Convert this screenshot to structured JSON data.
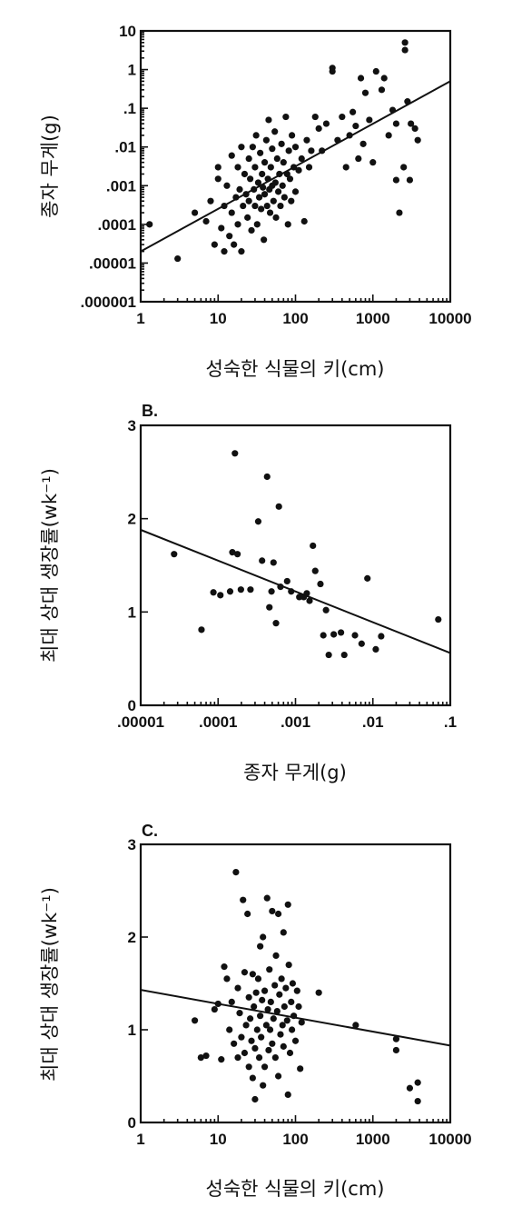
{
  "chart_data": [
    {
      "panel": "",
      "type": "scatter",
      "xlabel": "성숙한 식물의 키(cm)",
      "ylabel": "종자 무게(g)",
      "xscale": "log",
      "yscale": "log",
      "xlim": [
        1,
        10000
      ],
      "ylim": [
        1e-06,
        10
      ],
      "xticks": [
        1,
        10,
        100,
        1000,
        10000
      ],
      "xticklabels": [
        "1",
        "10",
        "100",
        "1000",
        "10000"
      ],
      "yticks": [
        1e-06,
        1e-05,
        0.0001,
        0.001,
        0.01,
        0.1,
        1,
        10
      ],
      "yticklabels": [
        ".000001",
        ".00001",
        ".0001",
        ".001",
        ".01",
        ".1",
        "1",
        "10"
      ],
      "grid": false,
      "trend_line": {
        "x": [
          1,
          10000
        ],
        "y": [
          2e-05,
          0.5
        ]
      },
      "points": [
        [
          1.3,
          0.0001
        ],
        [
          3,
          1.3e-05
        ],
        [
          5,
          0.0002
        ],
        [
          7,
          0.00012
        ],
        [
          8,
          0.0004
        ],
        [
          9,
          3e-05
        ],
        [
          10,
          0.0015
        ],
        [
          10,
          0.003
        ],
        [
          11,
          8e-05
        ],
        [
          12,
          2e-05
        ],
        [
          12,
          0.0003
        ],
        [
          13,
          0.001
        ],
        [
          14,
          5e-05
        ],
        [
          15,
          0.0002
        ],
        [
          15,
          0.006
        ],
        [
          16,
          3e-05
        ],
        [
          17,
          0.0005
        ],
        [
          18,
          0.0001
        ],
        [
          18,
          0.003
        ],
        [
          19,
          0.0008
        ],
        [
          20,
          2e-05
        ],
        [
          20,
          0.01
        ],
        [
          21,
          0.0003
        ],
        [
          22,
          0.002
        ],
        [
          23,
          0.0006
        ],
        [
          24,
          0.00015
        ],
        [
          25,
          0.005
        ],
        [
          25,
          0.0004
        ],
        [
          26,
          0.0015
        ],
        [
          27,
          7e-05
        ],
        [
          28,
          0.01
        ],
        [
          29,
          0.0008
        ],
        [
          30,
          0.0003
        ],
        [
          30,
          0.003
        ],
        [
          31,
          0.02
        ],
        [
          32,
          0.0001
        ],
        [
          33,
          0.0012
        ],
        [
          34,
          0.0005
        ],
        [
          35,
          0.007
        ],
        [
          36,
          0.00025
        ],
        [
          37,
          0.002
        ],
        [
          38,
          0.0009
        ],
        [
          39,
          4e-05
        ],
        [
          40,
          0.004
        ],
        [
          40,
          0.0006
        ],
        [
          42,
          0.015
        ],
        [
          43,
          0.0003
        ],
        [
          44,
          0.0015
        ],
        [
          45,
          0.05
        ],
        [
          46,
          0.0008
        ],
        [
          47,
          0.0002
        ],
        [
          48,
          0.003
        ],
        [
          50,
          0.001
        ],
        [
          50,
          0.009
        ],
        [
          52,
          0.0004
        ],
        [
          54,
          0.025
        ],
        [
          55,
          0.0012
        ],
        [
          56,
          0.00015
        ],
        [
          58,
          0.005
        ],
        [
          60,
          0.0007
        ],
        [
          62,
          0.002
        ],
        [
          64,
          0.0003
        ],
        [
          66,
          0.012
        ],
        [
          68,
          0.001
        ],
        [
          70,
          0.004
        ],
        [
          72,
          0.0005
        ],
        [
          75,
          0.06
        ],
        [
          78,
          0.002
        ],
        [
          80,
          0.0001
        ],
        [
          82,
          0.008
        ],
        [
          85,
          0.0015
        ],
        [
          88,
          0.0004
        ],
        [
          90,
          0.02
        ],
        [
          95,
          0.003
        ],
        [
          100,
          0.0007
        ],
        [
          100,
          0.01
        ],
        [
          110,
          0.0025
        ],
        [
          120,
          0.005
        ],
        [
          130,
          0.00012
        ],
        [
          140,
          0.015
        ],
        [
          150,
          0.003
        ],
        [
          160,
          0.008
        ],
        [
          180,
          0.06
        ],
        [
          200,
          0.03
        ],
        [
          220,
          0.008
        ],
        [
          250,
          0.04
        ],
        [
          300,
          1.1
        ],
        [
          300,
          0.9
        ],
        [
          350,
          0.015
        ],
        [
          400,
          0.06
        ],
        [
          450,
          0.003
        ],
        [
          500,
          0.02
        ],
        [
          550,
          0.08
        ],
        [
          600,
          0.035
        ],
        [
          650,
          0.005
        ],
        [
          700,
          0.6
        ],
        [
          750,
          0.012
        ],
        [
          800,
          0.25
        ],
        [
          900,
          0.05
        ],
        [
          1000,
          0.004
        ],
        [
          1100,
          0.9
        ],
        [
          1300,
          0.3
        ],
        [
          1400,
          0.6
        ],
        [
          1600,
          0.02
        ],
        [
          1800,
          0.09
        ],
        [
          2000,
          0.0014
        ],
        [
          2000,
          0.04
        ],
        [
          2200,
          0.0002
        ],
        [
          2500,
          0.003
        ],
        [
          2600,
          5
        ],
        [
          2600,
          3.2
        ],
        [
          2800,
          0.15
        ],
        [
          3000,
          0.0014
        ],
        [
          3100,
          0.04
        ],
        [
          3500,
          0.03
        ],
        [
          3800,
          0.015
        ]
      ]
    },
    {
      "panel": "B.",
      "type": "scatter",
      "xlabel": "종자 무게(g)",
      "ylabel": "최대 상대 생장률(wk⁻¹)",
      "xscale": "log",
      "yscale": "linear",
      "xlim": [
        1e-05,
        0.1
      ],
      "ylim": [
        0,
        3
      ],
      "xticks": [
        1e-05,
        0.0001,
        0.001,
        0.01,
        0.1
      ],
      "xticklabels": [
        ".00001",
        ".0001",
        ".001",
        ".01",
        ".1"
      ],
      "yticks": [
        0,
        1,
        2,
        3
      ],
      "yticklabels": [
        "0",
        "1",
        "2",
        "3"
      ],
      "grid": false,
      "trend_line": {
        "x": [
          1e-05,
          0.1
        ],
        "y": [
          1.88,
          0.56
        ]
      },
      "points": [
        [
          2.7e-05,
          1.62
        ],
        [
          6.1e-05,
          0.81
        ],
        [
          8.7e-05,
          1.21
        ],
        [
          0.000107,
          1.18
        ],
        [
          0.000143,
          1.22
        ],
        [
          0.000153,
          1.64
        ],
        [
          0.000165,
          2.7
        ],
        [
          0.000178,
          1.62
        ],
        [
          0.000197,
          1.24
        ],
        [
          0.000262,
          1.24
        ],
        [
          0.00033,
          1.97
        ],
        [
          0.00037,
          1.55
        ],
        [
          0.00043,
          2.45
        ],
        [
          0.00046,
          1.05
        ],
        [
          0.00049,
          1.22
        ],
        [
          0.00052,
          1.53
        ],
        [
          0.00056,
          0.88
        ],
        [
          0.00061,
          2.13
        ],
        [
          0.00064,
          1.27
        ],
        [
          0.00078,
          1.33
        ],
        [
          0.00088,
          1.22
        ],
        [
          0.00112,
          1.16
        ],
        [
          0.00128,
          1.16
        ],
        [
          0.0014,
          1.2
        ],
        [
          0.00152,
          1.12
        ],
        [
          0.00168,
          1.71
        ],
        [
          0.0018,
          1.44
        ],
        [
          0.0021,
          1.3
        ],
        [
          0.00229,
          0.75
        ],
        [
          0.00248,
          1.02
        ],
        [
          0.00269,
          0.54
        ],
        [
          0.00312,
          0.76
        ],
        [
          0.00387,
          0.78
        ],
        [
          0.00427,
          0.54
        ],
        [
          0.00587,
          0.75
        ],
        [
          0.00715,
          0.66
        ],
        [
          0.0085,
          1.36
        ],
        [
          0.0109,
          0.6
        ],
        [
          0.0128,
          0.74
        ],
        [
          0.07,
          0.92
        ]
      ]
    },
    {
      "panel": "C.",
      "type": "scatter",
      "xlabel": "성숙한 식물의 키(cm)",
      "ylabel": "최대 상대 생장률(wk⁻¹)",
      "xscale": "log",
      "yscale": "linear",
      "xlim": [
        1,
        10000
      ],
      "ylim": [
        0,
        3
      ],
      "xticks": [
        1,
        10,
        100,
        1000,
        10000
      ],
      "xticklabels": [
        "1",
        "10",
        "100",
        "1000",
        "10000"
      ],
      "yticks": [
        0,
        1,
        2,
        3
      ],
      "yticklabels": [
        "0",
        "1",
        "2",
        "3"
      ],
      "grid": false,
      "trend_line": {
        "x": [
          1,
          10000
        ],
        "y": [
          1.43,
          0.83
        ]
      },
      "points": [
        [
          5,
          1.1
        ],
        [
          6,
          0.7
        ],
        [
          7,
          0.72
        ],
        [
          9,
          1.22
        ],
        [
          10,
          1.28
        ],
        [
          11,
          0.68
        ],
        [
          12,
          1.68
        ],
        [
          13,
          1.55
        ],
        [
          14,
          1.0
        ],
        [
          15,
          1.3
        ],
        [
          16,
          0.85
        ],
        [
          17,
          2.7
        ],
        [
          18,
          1.45
        ],
        [
          18,
          0.7
        ],
        [
          19,
          1.18
        ],
        [
          20,
          0.92
        ],
        [
          21,
          2.4
        ],
        [
          22,
          1.62
        ],
        [
          22,
          0.75
        ],
        [
          23,
          1.05
        ],
        [
          24,
          2.25
        ],
        [
          25,
          1.35
        ],
        [
          25,
          0.6
        ],
        [
          26,
          1.12
        ],
        [
          27,
          0.88
        ],
        [
          28,
          1.6
        ],
        [
          28,
          0.48
        ],
        [
          29,
          1.25
        ],
        [
          30,
          0.8
        ],
        [
          30,
          0.25
        ],
        [
          31,
          1.4
        ],
        [
          32,
          1.0
        ],
        [
          33,
          1.55
        ],
        [
          34,
          0.7
        ],
        [
          35,
          1.9
        ],
        [
          35,
          1.15
        ],
        [
          36,
          0.92
        ],
        [
          37,
          1.32
        ],
        [
          38,
          2.0
        ],
        [
          38,
          0.4
        ],
        [
          40,
          1.42
        ],
        [
          40,
          0.6
        ],
        [
          42,
          1.05
        ],
        [
          43,
          2.42
        ],
        [
          44,
          1.22
        ],
        [
          45,
          0.78
        ],
        [
          46,
          1.65
        ],
        [
          47,
          1.0
        ],
        [
          48,
          1.3
        ],
        [
          50,
          0.85
        ],
        [
          50,
          2.28
        ],
        [
          52,
          1.12
        ],
        [
          54,
          1.48
        ],
        [
          55,
          0.7
        ],
        [
          56,
          1.8
        ],
        [
          58,
          1.2
        ],
        [
          60,
          2.25
        ],
        [
          60,
          0.5
        ],
        [
          62,
          1.38
        ],
        [
          64,
          0.95
        ],
        [
          66,
          1.55
        ],
        [
          68,
          1.05
        ],
        [
          70,
          2.05
        ],
        [
          70,
          0.82
        ],
        [
          72,
          1.25
        ],
        [
          75,
          1.45
        ],
        [
          78,
          1.1
        ],
        [
          80,
          2.35
        ],
        [
          80,
          0.3
        ],
        [
          82,
          1.7
        ],
        [
          85,
          0.75
        ],
        [
          88,
          1.3
        ],
        [
          90,
          1.0
        ],
        [
          92,
          1.5
        ],
        [
          95,
          1.15
        ],
        [
          100,
          0.88
        ],
        [
          105,
          1.42
        ],
        [
          110,
          1.25
        ],
        [
          115,
          0.58
        ],
        [
          120,
          1.08
        ],
        [
          200,
          1.4
        ],
        [
          600,
          1.05
        ],
        [
          2000,
          0.9
        ],
        [
          2000,
          0.78
        ],
        [
          3000,
          0.37
        ],
        [
          3800,
          0.43
        ],
        [
          3800,
          0.23
        ]
      ]
    }
  ]
}
